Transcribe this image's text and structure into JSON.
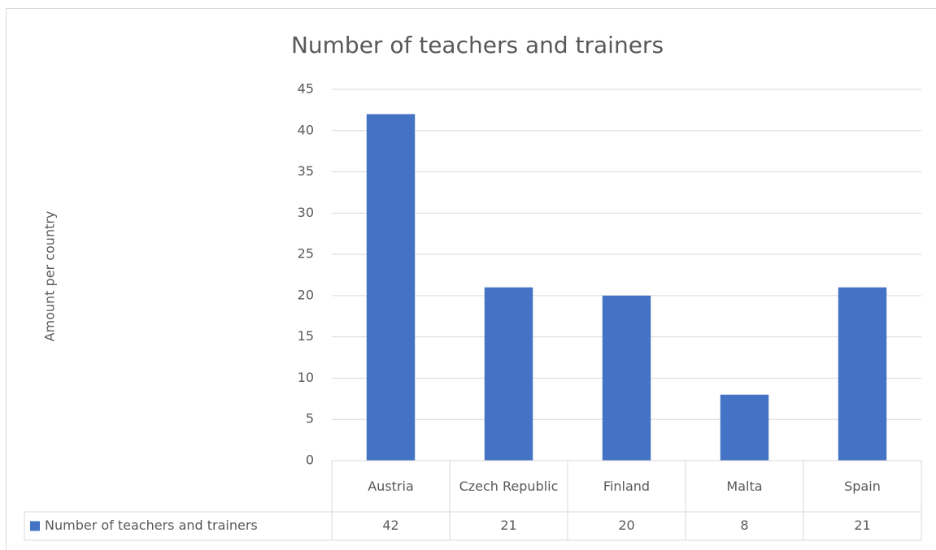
{
  "chart_data": {
    "type": "bar",
    "title": "Number of teachers and trainers",
    "y_label": "Amount per country",
    "categories": [
      "Austria",
      "Czech Republic",
      "Finland",
      "Malta",
      "Spain"
    ],
    "series": [
      {
        "name": "Number of teachers and trainers",
        "color": "#4472c4",
        "values": [
          42,
          21,
          20,
          8,
          21
        ]
      }
    ],
    "ylim": [
      0,
      45
    ],
    "yticks": [
      0,
      5,
      10,
      15,
      20,
      25,
      30,
      35,
      40,
      45
    ],
    "grid": true,
    "data_table": true
  }
}
